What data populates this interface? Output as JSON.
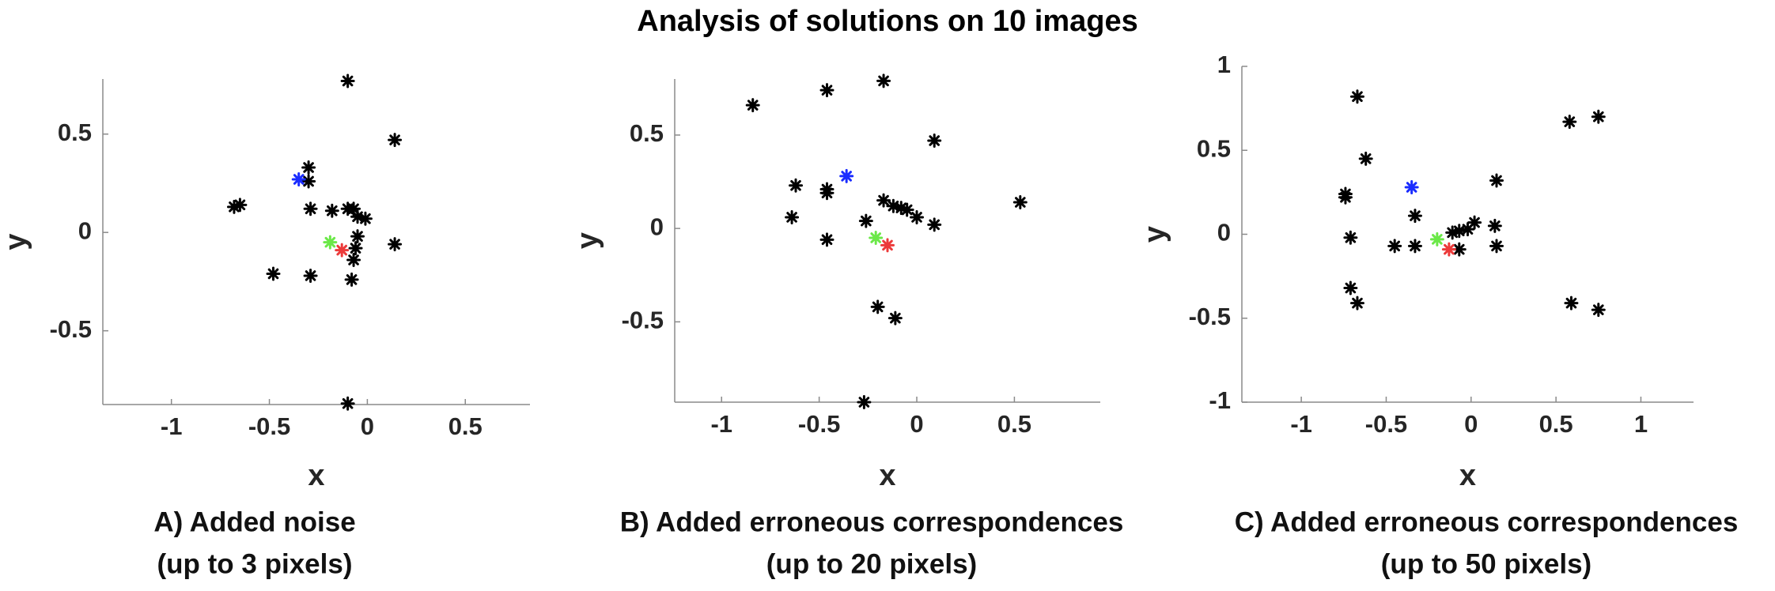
{
  "title": "Analysis of solutions on 10 images",
  "chart_data": [
    {
      "type": "scatter",
      "title": "A) Added noise",
      "subtitle": "(up to 3 pixels)",
      "xlabel": "x",
      "ylabel": "y",
      "xlim": [
        -1.35,
        0.83
      ],
      "ylim": [
        -0.875,
        0.78
      ],
      "xticks": [
        -1,
        -0.5,
        0,
        0.5
      ],
      "yticks": [
        -0.5,
        0,
        0.5
      ],
      "series": [
        {
          "color": "#000000",
          "x": [
            -0.1,
            0.14,
            -0.3,
            -0.3,
            -0.68,
            -0.65,
            -0.29,
            -0.18,
            -0.1,
            -0.07,
            -0.05,
            -0.01,
            -0.05,
            -0.06,
            -0.07,
            0.14,
            -0.48,
            -0.29,
            -0.08,
            -0.1
          ],
          "y": [
            0.77,
            0.47,
            0.33,
            0.26,
            0.13,
            0.14,
            0.12,
            0.11,
            0.12,
            0.12,
            0.08,
            0.07,
            -0.02,
            -0.08,
            -0.14,
            -0.06,
            -0.21,
            -0.22,
            -0.24,
            -0.87
          ]
        },
        {
          "color": "#1a2cff",
          "x": [
            -0.35
          ],
          "y": [
            0.27
          ]
        },
        {
          "color": "#6be848",
          "x": [
            -0.19
          ],
          "y": [
            -0.05
          ]
        },
        {
          "color": "#ec3a3a",
          "x": [
            -0.13
          ],
          "y": [
            -0.09
          ]
        }
      ]
    },
    {
      "type": "scatter",
      "title": "B) Added erroneous correspondences",
      "subtitle": "(up to 20 pixels)",
      "xlabel": "x",
      "ylabel": "y",
      "xlim": [
        -1.24,
        0.94
      ],
      "ylim": [
        -0.93,
        0.8
      ],
      "xticks": [
        -1,
        -0.5,
        0,
        0.5
      ],
      "yticks": [
        -0.5,
        0,
        0.5
      ],
      "series": [
        {
          "color": "#000000",
          "x": [
            -0.84,
            -0.46,
            -0.17,
            0.09,
            -0.62,
            -0.46,
            -0.46,
            -0.64,
            -0.46,
            -0.26,
            -0.17,
            -0.12,
            -0.08,
            -0.05,
            0.0,
            0.09,
            0.53,
            -0.2,
            -0.11,
            -0.27
          ],
          "y": [
            0.66,
            0.74,
            0.79,
            0.47,
            0.23,
            0.21,
            0.19,
            0.06,
            -0.06,
            0.04,
            0.15,
            0.12,
            0.11,
            0.1,
            0.06,
            0.02,
            0.14,
            -0.42,
            -0.48,
            -0.93
          ]
        },
        {
          "color": "#1a2cff",
          "x": [
            -0.36
          ],
          "y": [
            0.28
          ]
        },
        {
          "color": "#6be848",
          "x": [
            -0.21
          ],
          "y": [
            -0.05
          ]
        },
        {
          "color": "#ec3a3a",
          "x": [
            -0.15
          ],
          "y": [
            -0.09
          ]
        }
      ]
    },
    {
      "type": "scatter",
      "title": "C) Added erroneous correspondences",
      "subtitle": "(up to 50 pixels)",
      "xlabel": "x",
      "ylabel": "y",
      "xlim": [
        -1.35,
        1.31
      ],
      "ylim": [
        -1,
        1
      ],
      "xticks": [
        -1,
        -0.5,
        0,
        0.5,
        1
      ],
      "yticks": [
        -1,
        -0.5,
        0,
        0.5,
        1
      ],
      "series": [
        {
          "color": "#000000",
          "x": [
            -0.67,
            -0.62,
            -0.74,
            -0.74,
            -0.33,
            0.15,
            0.58,
            0.75,
            -0.71,
            -0.45,
            -0.33,
            -0.11,
            -0.07,
            -0.02,
            0.02,
            -0.07,
            0.14,
            0.15,
            -0.71,
            -0.67,
            0.59,
            0.75
          ],
          "y": [
            0.82,
            0.45,
            0.24,
            0.22,
            0.11,
            0.32,
            0.67,
            0.7,
            -0.02,
            -0.07,
            -0.07,
            0.01,
            0.02,
            0.03,
            0.07,
            -0.09,
            0.05,
            -0.07,
            -0.32,
            -0.41,
            -0.41,
            -0.45
          ]
        },
        {
          "color": "#1a2cff",
          "x": [
            -0.35
          ],
          "y": [
            0.28
          ]
        },
        {
          "color": "#6be848",
          "x": [
            -0.2
          ],
          "y": [
            -0.03
          ]
        },
        {
          "color": "#ec3a3a",
          "x": [
            -0.13
          ],
          "y": [
            -0.09
          ]
        }
      ]
    }
  ]
}
